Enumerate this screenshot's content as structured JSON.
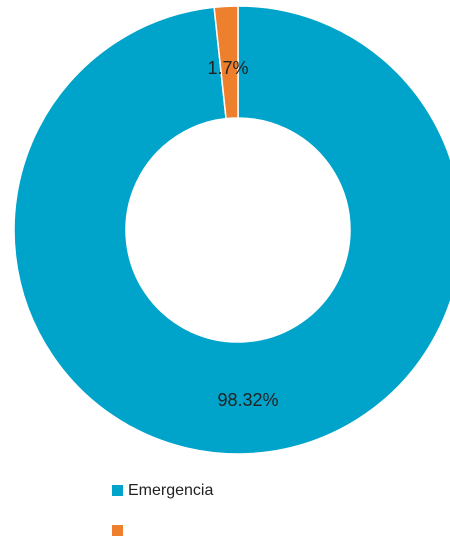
{
  "chart_data": {
    "type": "pie",
    "variant": "donut",
    "series": [
      {
        "name": "Emergencia",
        "value": 98.32,
        "label": "98.32%",
        "color": "#00A3C9"
      },
      {
        "name": "",
        "value": 1.7,
        "label": "1.7%",
        "color": "#EE7F2D"
      }
    ],
    "legend_position": "bottom-left",
    "title": ""
  }
}
